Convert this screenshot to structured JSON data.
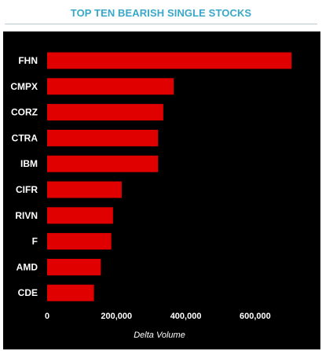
{
  "header": {
    "title": "TOP TEN BEARISH SINGLE STOCKS"
  },
  "colors": {
    "title": "#38a7c9",
    "panel_background": "#000000",
    "bar": "#e00000",
    "text": "#ffffff"
  },
  "chart_data": {
    "type": "bar",
    "orientation": "horizontal",
    "categories": [
      "FHN",
      "CMPX",
      "CORZ",
      "CTRA",
      "IBM",
      "CIFR",
      "RIVN",
      "F",
      "AMD",
      "CDE"
    ],
    "values": [
      705000,
      365000,
      335000,
      320000,
      320000,
      215000,
      190000,
      185000,
      155000,
      135000
    ],
    "xlabel": "Delta Volume",
    "ylabel": "",
    "xlim": [
      0,
      720000
    ],
    "x_ticks": [
      {
        "value": 0,
        "label": "0"
      },
      {
        "value": 200000,
        "label": "200,000"
      },
      {
        "value": 400000,
        "label": "400,000"
      },
      {
        "value": 600000,
        "label": "600,000"
      }
    ],
    "grid": false,
    "legend": "none"
  }
}
